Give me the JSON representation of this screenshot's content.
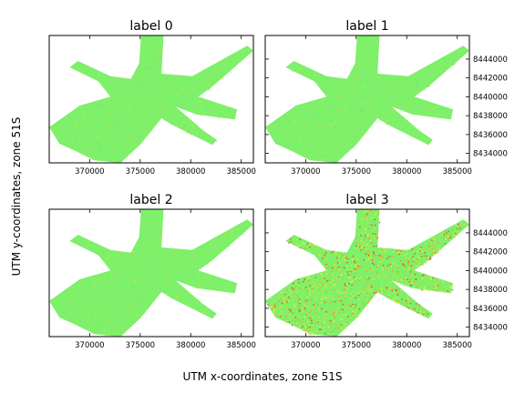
{
  "figure": {
    "xlabel": "UTM x-coordinates, zone 51S",
    "ylabel": "UTM y-coordinates, zone 51S"
  },
  "chart_data": {
    "type": "heatmap",
    "panels": [
      {
        "title": "label 0",
        "speckle": "low"
      },
      {
        "title": "label 1",
        "speckle": "low"
      },
      {
        "title": "label 2",
        "speckle": "low"
      },
      {
        "title": "label 3",
        "speckle": "high"
      }
    ],
    "xlim": [
      366000,
      386200
    ],
    "ylim": [
      8433000,
      8446500
    ],
    "xticks": [
      370000,
      375000,
      380000,
      385000
    ],
    "xtick_labels": [
      "370000",
      "375000",
      "380000",
      "385000"
    ],
    "yticks": [
      8434000,
      8436000,
      8438000,
      8440000,
      8442000,
      8444000
    ],
    "ytick_labels": [
      "8434000",
      "8436000",
      "8438000",
      "8440000",
      "8442000",
      "8444000"
    ],
    "ytick_side": "right",
    "colors": {
      "base": "#7ef06a",
      "low_speckle": [
        "#a8e05a",
        "#d4e040",
        "#5fe890"
      ],
      "high_speckle": [
        "#e8e030",
        "#f0a020",
        "#e85020",
        "#c8e040",
        "#f0f040"
      ]
    }
  }
}
